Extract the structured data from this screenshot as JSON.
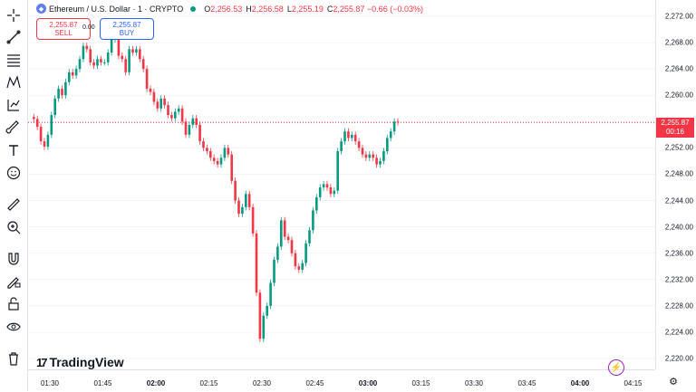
{
  "legend": {
    "symbol": "Ethereum / U.S. Dollar · 1 · CRYPTO",
    "o_key": "O",
    "o_val": "2,256.53",
    "h_key": "H",
    "h_val": "2,256.58",
    "l_key": "L",
    "l_val": "2,255.19",
    "c_key": "C",
    "c_val": "2,255.87 −0.66 (−0.03%)"
  },
  "trade": {
    "sell_price": "2,255.87",
    "sell_label": "SELL",
    "spread": "0.00",
    "buy_price": "2,255.87",
    "buy_label": "BUY"
  },
  "last_price": {
    "price": "2,255.87",
    "countdown": "00:16"
  },
  "brand": {
    "name": "TradingView"
  },
  "price_axis": [
    "2,272.00",
    "2,268.00",
    "2,264.00",
    "2,260.00",
    "2,256.00",
    "2,252.00",
    "2,248.00",
    "2,244.00",
    "2,240.00",
    "2,236.00",
    "2,232.00",
    "2,228.00",
    "2,224.00",
    "2,220.00"
  ],
  "time_axis": [
    {
      "label": "01:30",
      "bold": false
    },
    {
      "label": "01:45",
      "bold": false
    },
    {
      "label": "02:00",
      "bold": true
    },
    {
      "label": "02:15",
      "bold": false
    },
    {
      "label": "02:30",
      "bold": false
    },
    {
      "label": "02:45",
      "bold": false
    },
    {
      "label": "03:00",
      "bold": true
    },
    {
      "label": "03:15",
      "bold": false
    },
    {
      "label": "03:30",
      "bold": false
    },
    {
      "label": "03:45",
      "bold": false
    },
    {
      "label": "04:00",
      "bold": true
    },
    {
      "label": "04:15",
      "bold": false
    }
  ],
  "colors": {
    "up": "#089981",
    "down": "#f23645",
    "grid": "#f0f3fa"
  },
  "chart_data": {
    "type": "candlestick",
    "y_range": [
      2220,
      2272
    ],
    "last_price": 2255.87,
    "closes": [
      2256.4,
      2255.2,
      2253.0,
      2252.2,
      2254.0,
      2257.0,
      2259.5,
      2261.0,
      2260.0,
      2262.0,
      2263.5,
      2263.0,
      2264.0,
      2265.5,
      2267.5,
      2267.0,
      2265.0,
      2264.5,
      2265.5,
      2265.0,
      2265.0,
      2266.5,
      2268.5,
      2269.0,
      2266.0,
      2265.5,
      2263.5,
      2267.0,
      2266.5,
      2267.0,
      2265.5,
      2264.0,
      2261.0,
      2260.5,
      2259.0,
      2258.0,
      2259.5,
      2258.5,
      2257.0,
      2256.5,
      2257.5,
      2258.0,
      2256.0,
      2254.0,
      2255.5,
      2256.5,
      2255.5,
      2253.0,
      2252.0,
      2251.5,
      2250.5,
      2250.0,
      2249.5,
      2250.5,
      2252.0,
      2251.0,
      2247.0,
      2244.0,
      2242.0,
      2243.0,
      2245.0,
      2243.0,
      2239.0,
      2230.0,
      2223.0,
      2226.5,
      2228.0,
      2231.5,
      2235.0,
      2237.0,
      2241.0,
      2238.5,
      2238.0,
      2236.0,
      2234.0,
      2233.5,
      2234.5,
      2237.5,
      2239.5,
      2242.5,
      2244.5,
      2246.0,
      2246.5,
      2246.0,
      2245.0,
      2245.5,
      2251.5,
      2253.0,
      2254.5,
      2253.5,
      2254.0,
      2253.0,
      2252.0,
      2251.0,
      2250.5,
      2251.0,
      2250.5,
      2249.5,
      2250.0,
      2251.5,
      2253.5,
      2254.5,
      2256.0,
      2255.9
    ]
  }
}
